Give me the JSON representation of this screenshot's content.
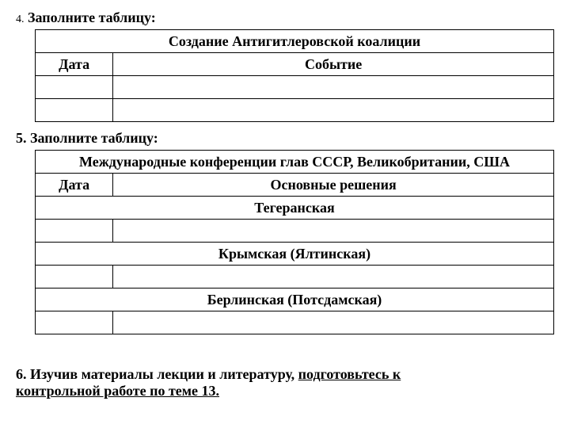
{
  "task4": {
    "number": "4.",
    "title": "Заполните таблицу:",
    "table_title": "Создание Антигитлеровской коалиции",
    "col1": "Дата",
    "col2": "Событие"
  },
  "task5": {
    "number": "5.",
    "title": "Заполните таблицу:",
    "table_title": "Международные конференции глав СССР, Великобритании, США",
    "col1": "Дата",
    "col2": "Основные решения",
    "conf1": "Тегеранская",
    "conf2": "Крымская (Ялтинская)",
    "conf3": "Берлинская (Потсдамская)"
  },
  "task6": {
    "prefix": "6. Изучив материалы лекции и литературу, ",
    "underlined1": "подготовьтесь к",
    "underlined2": "контрольной работе по теме 13."
  }
}
